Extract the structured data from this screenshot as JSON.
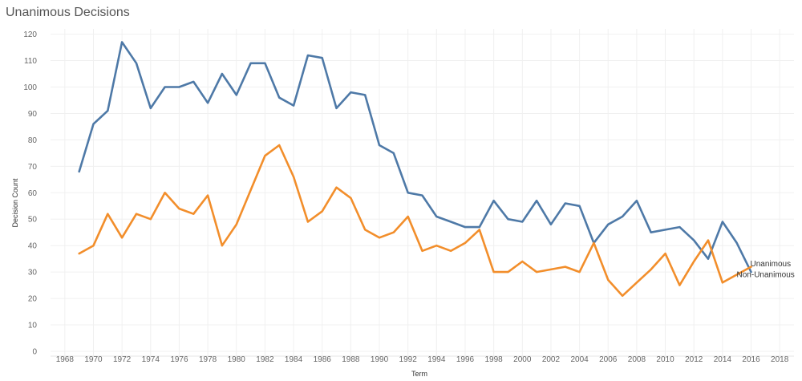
{
  "chart_data": {
    "type": "line",
    "title": "Unanimous Decisions",
    "xlabel": "Term",
    "ylabel": "Decision Count",
    "xlim": [
      1967,
      2019
    ],
    "ylim": [
      0,
      122
    ],
    "x_ticks": [
      1968,
      1970,
      1972,
      1974,
      1976,
      1978,
      1980,
      1982,
      1984,
      1986,
      1988,
      1990,
      1992,
      1994,
      1996,
      1998,
      2000,
      2002,
      2004,
      2006,
      2008,
      2010,
      2012,
      2014,
      2016,
      2018
    ],
    "y_ticks": [
      0,
      10,
      20,
      30,
      40,
      50,
      60,
      70,
      80,
      90,
      100,
      110,
      120
    ],
    "grid": true,
    "x": [
      1969,
      1970,
      1971,
      1972,
      1973,
      1974,
      1975,
      1976,
      1977,
      1978,
      1979,
      1980,
      1981,
      1982,
      1983,
      1984,
      1985,
      1986,
      1987,
      1988,
      1989,
      1990,
      1991,
      1992,
      1993,
      1994,
      1995,
      1996,
      1997,
      1998,
      1999,
      2000,
      2001,
      2002,
      2003,
      2004,
      2005,
      2006,
      2007,
      2008,
      2009,
      2010,
      2011,
      2012,
      2013,
      2014,
      2015,
      2016
    ],
    "series": [
      {
        "name": "Unanimous",
        "color": "#4e79a7",
        "values": [
          68,
          86,
          91,
          117,
          109,
          92,
          100,
          100,
          102,
          94,
          105,
          97,
          109,
          109,
          96,
          93,
          112,
          111,
          92,
          98,
          97,
          78,
          75,
          60,
          59,
          51,
          49,
          47,
          47,
          57,
          50,
          49,
          57,
          48,
          56,
          55,
          41,
          48,
          51,
          57,
          45,
          46,
          47,
          42,
          35,
          49,
          41,
          30
        ]
      },
      {
        "name": "Non-Unanimous",
        "color": "#f28e2b",
        "values": [
          37,
          40,
          52,
          43,
          52,
          50,
          60,
          54,
          52,
          59,
          40,
          48,
          61,
          74,
          78,
          66,
          49,
          53,
          62,
          58,
          46,
          43,
          45,
          51,
          38,
          40,
          38,
          41,
          46,
          30,
          30,
          34,
          30,
          31,
          32,
          30,
          41,
          27,
          21,
          26,
          31,
          37,
          25,
          34,
          42,
          26,
          29,
          32
        ]
      }
    ]
  }
}
